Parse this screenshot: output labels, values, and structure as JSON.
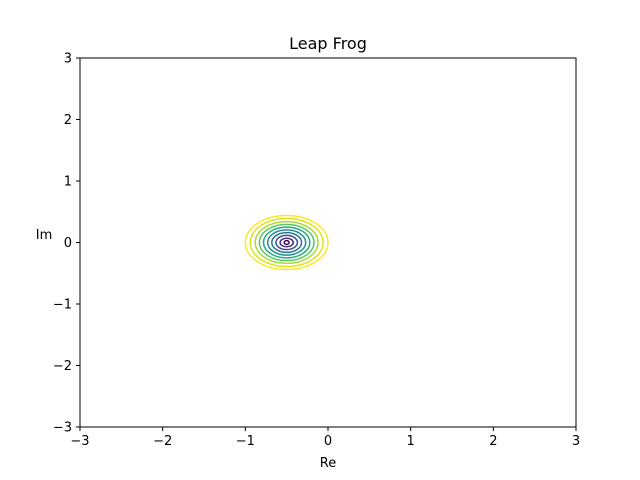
{
  "chart_data": {
    "type": "contour",
    "title": "Leap Frog",
    "xlabel": "Re",
    "ylabel": "Im",
    "xlim": [
      -3,
      3
    ],
    "ylim": [
      -3,
      3
    ],
    "xticks": [
      -3,
      -2,
      -1,
      0,
      1,
      2,
      3
    ],
    "yticks": [
      -3,
      -2,
      -1,
      0,
      1,
      2,
      3
    ],
    "xtick_labels": [
      "−3",
      "−2",
      "−1",
      "0",
      "1",
      "2",
      "3"
    ],
    "ytick_labels": [
      "−3",
      "−2",
      "−1",
      "0",
      "1",
      "2",
      "3"
    ],
    "grid": false,
    "colormap": "viridis",
    "center": [
      -0.5,
      0
    ],
    "contours": [
      {
        "rx": 0.03,
        "ry": 0.03,
        "color": "#440154"
      },
      {
        "rx": 0.08,
        "ry": 0.07,
        "color": "#472c7a"
      },
      {
        "rx": 0.13,
        "ry": 0.115,
        "color": "#3b518b"
      },
      {
        "rx": 0.18,
        "ry": 0.16,
        "color": "#2c718e"
      },
      {
        "rx": 0.23,
        "ry": 0.205,
        "color": "#21908d"
      },
      {
        "rx": 0.28,
        "ry": 0.25,
        "color": "#27ad81"
      },
      {
        "rx": 0.33,
        "ry": 0.295,
        "color": "#5cc863"
      },
      {
        "rx": 0.38,
        "ry": 0.34,
        "color": "#aadc32"
      },
      {
        "rx": 0.44,
        "ry": 0.39,
        "color": "#dde318"
      },
      {
        "rx": 0.5,
        "ry": 0.44,
        "color": "#fde725"
      }
    ]
  }
}
